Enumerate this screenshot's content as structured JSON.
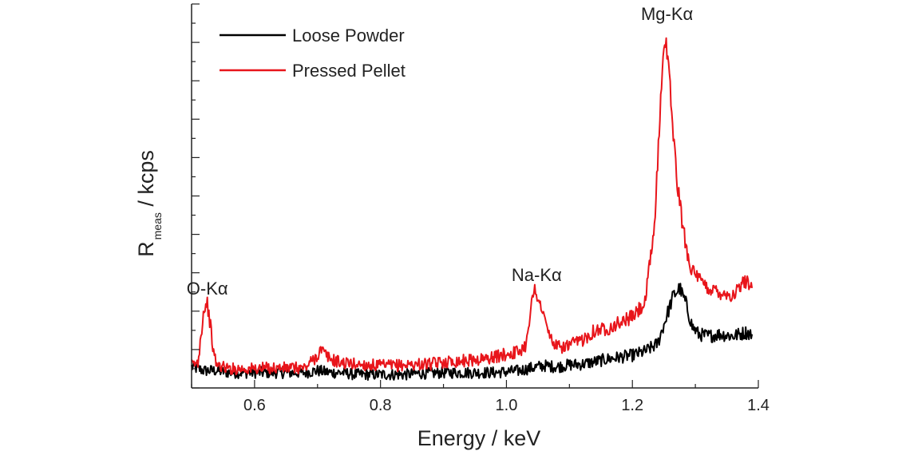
{
  "chart_data": {
    "type": "line",
    "xlabel": "Energy / keV",
    "ylabel_main": "R",
    "ylabel_sub": "meas",
    "ylabel_unit": " / kcps",
    "xlim": [
      0.5,
      1.4
    ],
    "ylim": [
      0,
      10
    ],
    "x_ticks": [
      "0.6",
      "0.8",
      "1.0",
      "1.2",
      "1.4"
    ],
    "x_tick_values": [
      0.6,
      0.8,
      1.0,
      1.2,
      1.4
    ],
    "y_tick_labels_shown": false,
    "legend_position": "top-left",
    "series": [
      {
        "name": "Loose Powder",
        "color": "#000000",
        "points": [
          [
            0.5,
            0.55
          ],
          [
            0.52,
            0.45
          ],
          [
            0.54,
            0.45
          ],
          [
            0.56,
            0.4
          ],
          [
            0.58,
            0.4
          ],
          [
            0.6,
            0.4
          ],
          [
            0.62,
            0.4
          ],
          [
            0.64,
            0.4
          ],
          [
            0.66,
            0.4
          ],
          [
            0.68,
            0.4
          ],
          [
            0.7,
            0.45
          ],
          [
            0.72,
            0.4
          ],
          [
            0.74,
            0.4
          ],
          [
            0.76,
            0.35
          ],
          [
            0.78,
            0.35
          ],
          [
            0.8,
            0.35
          ],
          [
            0.82,
            0.35
          ],
          [
            0.84,
            0.35
          ],
          [
            0.86,
            0.38
          ],
          [
            0.88,
            0.38
          ],
          [
            0.9,
            0.4
          ],
          [
            0.92,
            0.4
          ],
          [
            0.94,
            0.4
          ],
          [
            0.96,
            0.4
          ],
          [
            0.98,
            0.4
          ],
          [
            1.0,
            0.42
          ],
          [
            1.02,
            0.45
          ],
          [
            1.04,
            0.52
          ],
          [
            1.06,
            0.58
          ],
          [
            1.08,
            0.55
          ],
          [
            1.1,
            0.6
          ],
          [
            1.12,
            0.62
          ],
          [
            1.14,
            0.68
          ],
          [
            1.16,
            0.75
          ],
          [
            1.18,
            0.8
          ],
          [
            1.2,
            0.85
          ],
          [
            1.22,
            0.95
          ],
          [
            1.24,
            1.15
          ],
          [
            1.255,
            1.9
          ],
          [
            1.265,
            2.4
          ],
          [
            1.275,
            2.6
          ],
          [
            1.285,
            2.2
          ],
          [
            1.295,
            1.6
          ],
          [
            1.305,
            1.4
          ],
          [
            1.32,
            1.35
          ],
          [
            1.34,
            1.4
          ],
          [
            1.36,
            1.35
          ],
          [
            1.38,
            1.45
          ],
          [
            1.39,
            1.4
          ]
        ]
      },
      {
        "name": "Pressed Pellet",
        "color": "#e8151b",
        "points": [
          [
            0.5,
            0.6
          ],
          [
            0.51,
            0.65
          ],
          [
            0.515,
            1.4
          ],
          [
            0.52,
            2.1
          ],
          [
            0.525,
            2.2
          ],
          [
            0.53,
            1.6
          ],
          [
            0.535,
            0.9
          ],
          [
            0.54,
            0.6
          ],
          [
            0.56,
            0.5
          ],
          [
            0.58,
            0.5
          ],
          [
            0.6,
            0.5
          ],
          [
            0.62,
            0.52
          ],
          [
            0.64,
            0.52
          ],
          [
            0.66,
            0.52
          ],
          [
            0.68,
            0.52
          ],
          [
            0.7,
            0.85
          ],
          [
            0.705,
            1.0
          ],
          [
            0.72,
            0.75
          ],
          [
            0.74,
            0.65
          ],
          [
            0.76,
            0.62
          ],
          [
            0.78,
            0.6
          ],
          [
            0.8,
            0.58
          ],
          [
            0.82,
            0.58
          ],
          [
            0.84,
            0.6
          ],
          [
            0.86,
            0.62
          ],
          [
            0.88,
            0.62
          ],
          [
            0.9,
            0.68
          ],
          [
            0.92,
            0.7
          ],
          [
            0.94,
            0.72
          ],
          [
            0.96,
            0.75
          ],
          [
            0.98,
            0.8
          ],
          [
            1.0,
            0.88
          ],
          [
            1.02,
            0.95
          ],
          [
            1.03,
            1.1
          ],
          [
            1.04,
            2.2
          ],
          [
            1.045,
            2.55
          ],
          [
            1.05,
            2.4
          ],
          [
            1.06,
            1.8
          ],
          [
            1.07,
            1.3
          ],
          [
            1.08,
            1.05
          ],
          [
            1.1,
            1.1
          ],
          [
            1.12,
            1.25
          ],
          [
            1.14,
            1.5
          ],
          [
            1.16,
            1.55
          ],
          [
            1.18,
            1.7
          ],
          [
            1.2,
            1.85
          ],
          [
            1.22,
            2.2
          ],
          [
            1.235,
            4.2
          ],
          [
            1.245,
            7.5
          ],
          [
            1.25,
            9.1
          ],
          [
            1.255,
            8.8
          ],
          [
            1.26,
            7.8
          ],
          [
            1.27,
            5.5
          ],
          [
            1.28,
            4.2
          ],
          [
            1.29,
            3.3
          ],
          [
            1.3,
            2.9
          ],
          [
            1.32,
            2.6
          ],
          [
            1.34,
            2.5
          ],
          [
            1.36,
            2.4
          ],
          [
            1.38,
            2.8
          ],
          [
            1.39,
            2.6
          ]
        ]
      }
    ],
    "annotations": [
      {
        "text": "O-Kα",
        "x": 0.525,
        "y": 2.35
      },
      {
        "text": "Na-Kα",
        "x": 1.048,
        "y": 2.7
      },
      {
        "text": "Mg-Kα",
        "x": 1.255,
        "y": 9.5
      }
    ]
  }
}
